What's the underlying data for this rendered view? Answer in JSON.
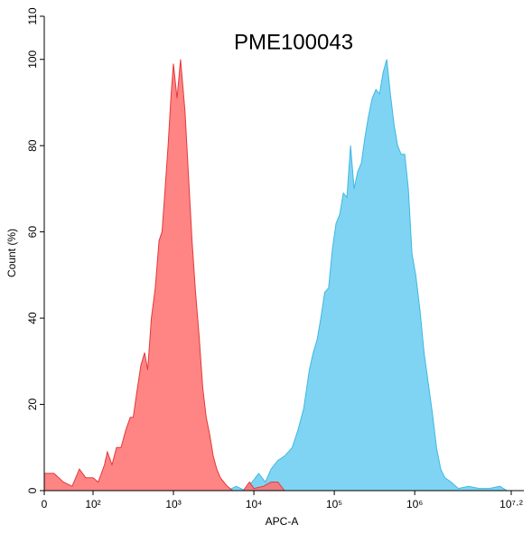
{
  "chart_data": {
    "type": "area",
    "title": "PME100043",
    "xlabel": "APC-A",
    "ylabel": "Count (%)",
    "xscale": "symlog",
    "xlim": [
      0,
      15848932
    ],
    "ylim": [
      0,
      110
    ],
    "xticks": [
      0,
      {
        "value": 100,
        "label": "10²"
      },
      {
        "value": 1000,
        "label": "10³"
      },
      {
        "value": 10000,
        "label": "10⁴"
      },
      {
        "value": 100000,
        "label": "10⁵"
      },
      {
        "value": 1000000,
        "label": "10⁶"
      },
      {
        "value": 15848932,
        "label": "10⁷·²"
      }
    ],
    "yticks": [
      0,
      20,
      40,
      60,
      80,
      100,
      110
    ],
    "series": [
      {
        "color": "#3fb8e3",
        "fill": "#7fd4f3",
        "x": [
          4680,
          6026,
          7762,
          9510,
          11480,
          13900,
          16370,
          19860,
          24050,
          29920,
          35300,
          41590,
          48980,
          54700,
          61090,
          68080,
          76030,
          84860,
          94650,
          105300,
          116700,
          129400,
          143500,
          159200,
          176600,
          195900,
          217300,
          241000,
          267300,
          296500,
          328900,
          364800,
          404600,
          448700,
          497700,
          552100,
          612400,
          677600,
          751600,
          833700,
          924700,
          1030000,
          1161000,
          1306000,
          1472000,
          1656000,
          1866000,
          2104000,
          2366000,
          2831000,
          3483000,
          4688000,
          6310000,
          8492000,
          11430000,
          14060000
        ],
        "values": [
          0,
          1,
          0,
          2,
          4,
          2,
          5,
          7,
          8,
          10,
          14,
          19,
          28,
          32,
          35,
          40,
          46,
          47,
          56,
          62,
          64,
          69,
          68,
          80,
          70,
          74,
          76,
          82,
          87,
          91,
          93,
          92,
          97,
          100,
          92,
          85,
          80,
          78,
          78,
          70,
          55,
          50,
          42,
          32,
          25,
          18,
          10,
          5,
          3,
          2,
          0.5,
          1,
          0.5,
          0.5,
          1,
          0
        ]
      },
      {
        "color": "#e23a3a",
        "fill": "#ff6e6e",
        "x": [
          0,
          20,
          39,
          57,
          72,
          85,
          100,
          116,
          139,
          151,
          172,
          196,
          223,
          255,
          290,
          316,
          345,
          393,
          438,
          478,
          532,
          594,
          662,
          722,
          787,
          858,
          937,
          1000,
          1107,
          1225,
          1390,
          1538,
          1702,
          1884,
          2084,
          2307,
          2553,
          2825,
          3126,
          3455,
          3822,
          4229,
          4680,
          5445,
          7380,
          8810,
          10000,
          13150,
          16370,
          19860,
          24050
        ],
        "values": [
          4,
          4,
          2,
          1,
          5,
          3,
          3,
          2,
          6,
          9,
          6,
          10,
          10,
          14,
          17,
          17,
          22,
          29,
          32,
          28,
          40,
          47,
          58,
          60,
          70,
          80,
          92,
          99,
          91,
          100,
          88,
          73,
          58,
          46,
          36,
          24,
          17,
          13,
          8,
          5,
          3,
          2,
          1,
          0,
          0,
          2,
          0.5,
          1,
          2,
          2,
          0
        ]
      }
    ]
  }
}
